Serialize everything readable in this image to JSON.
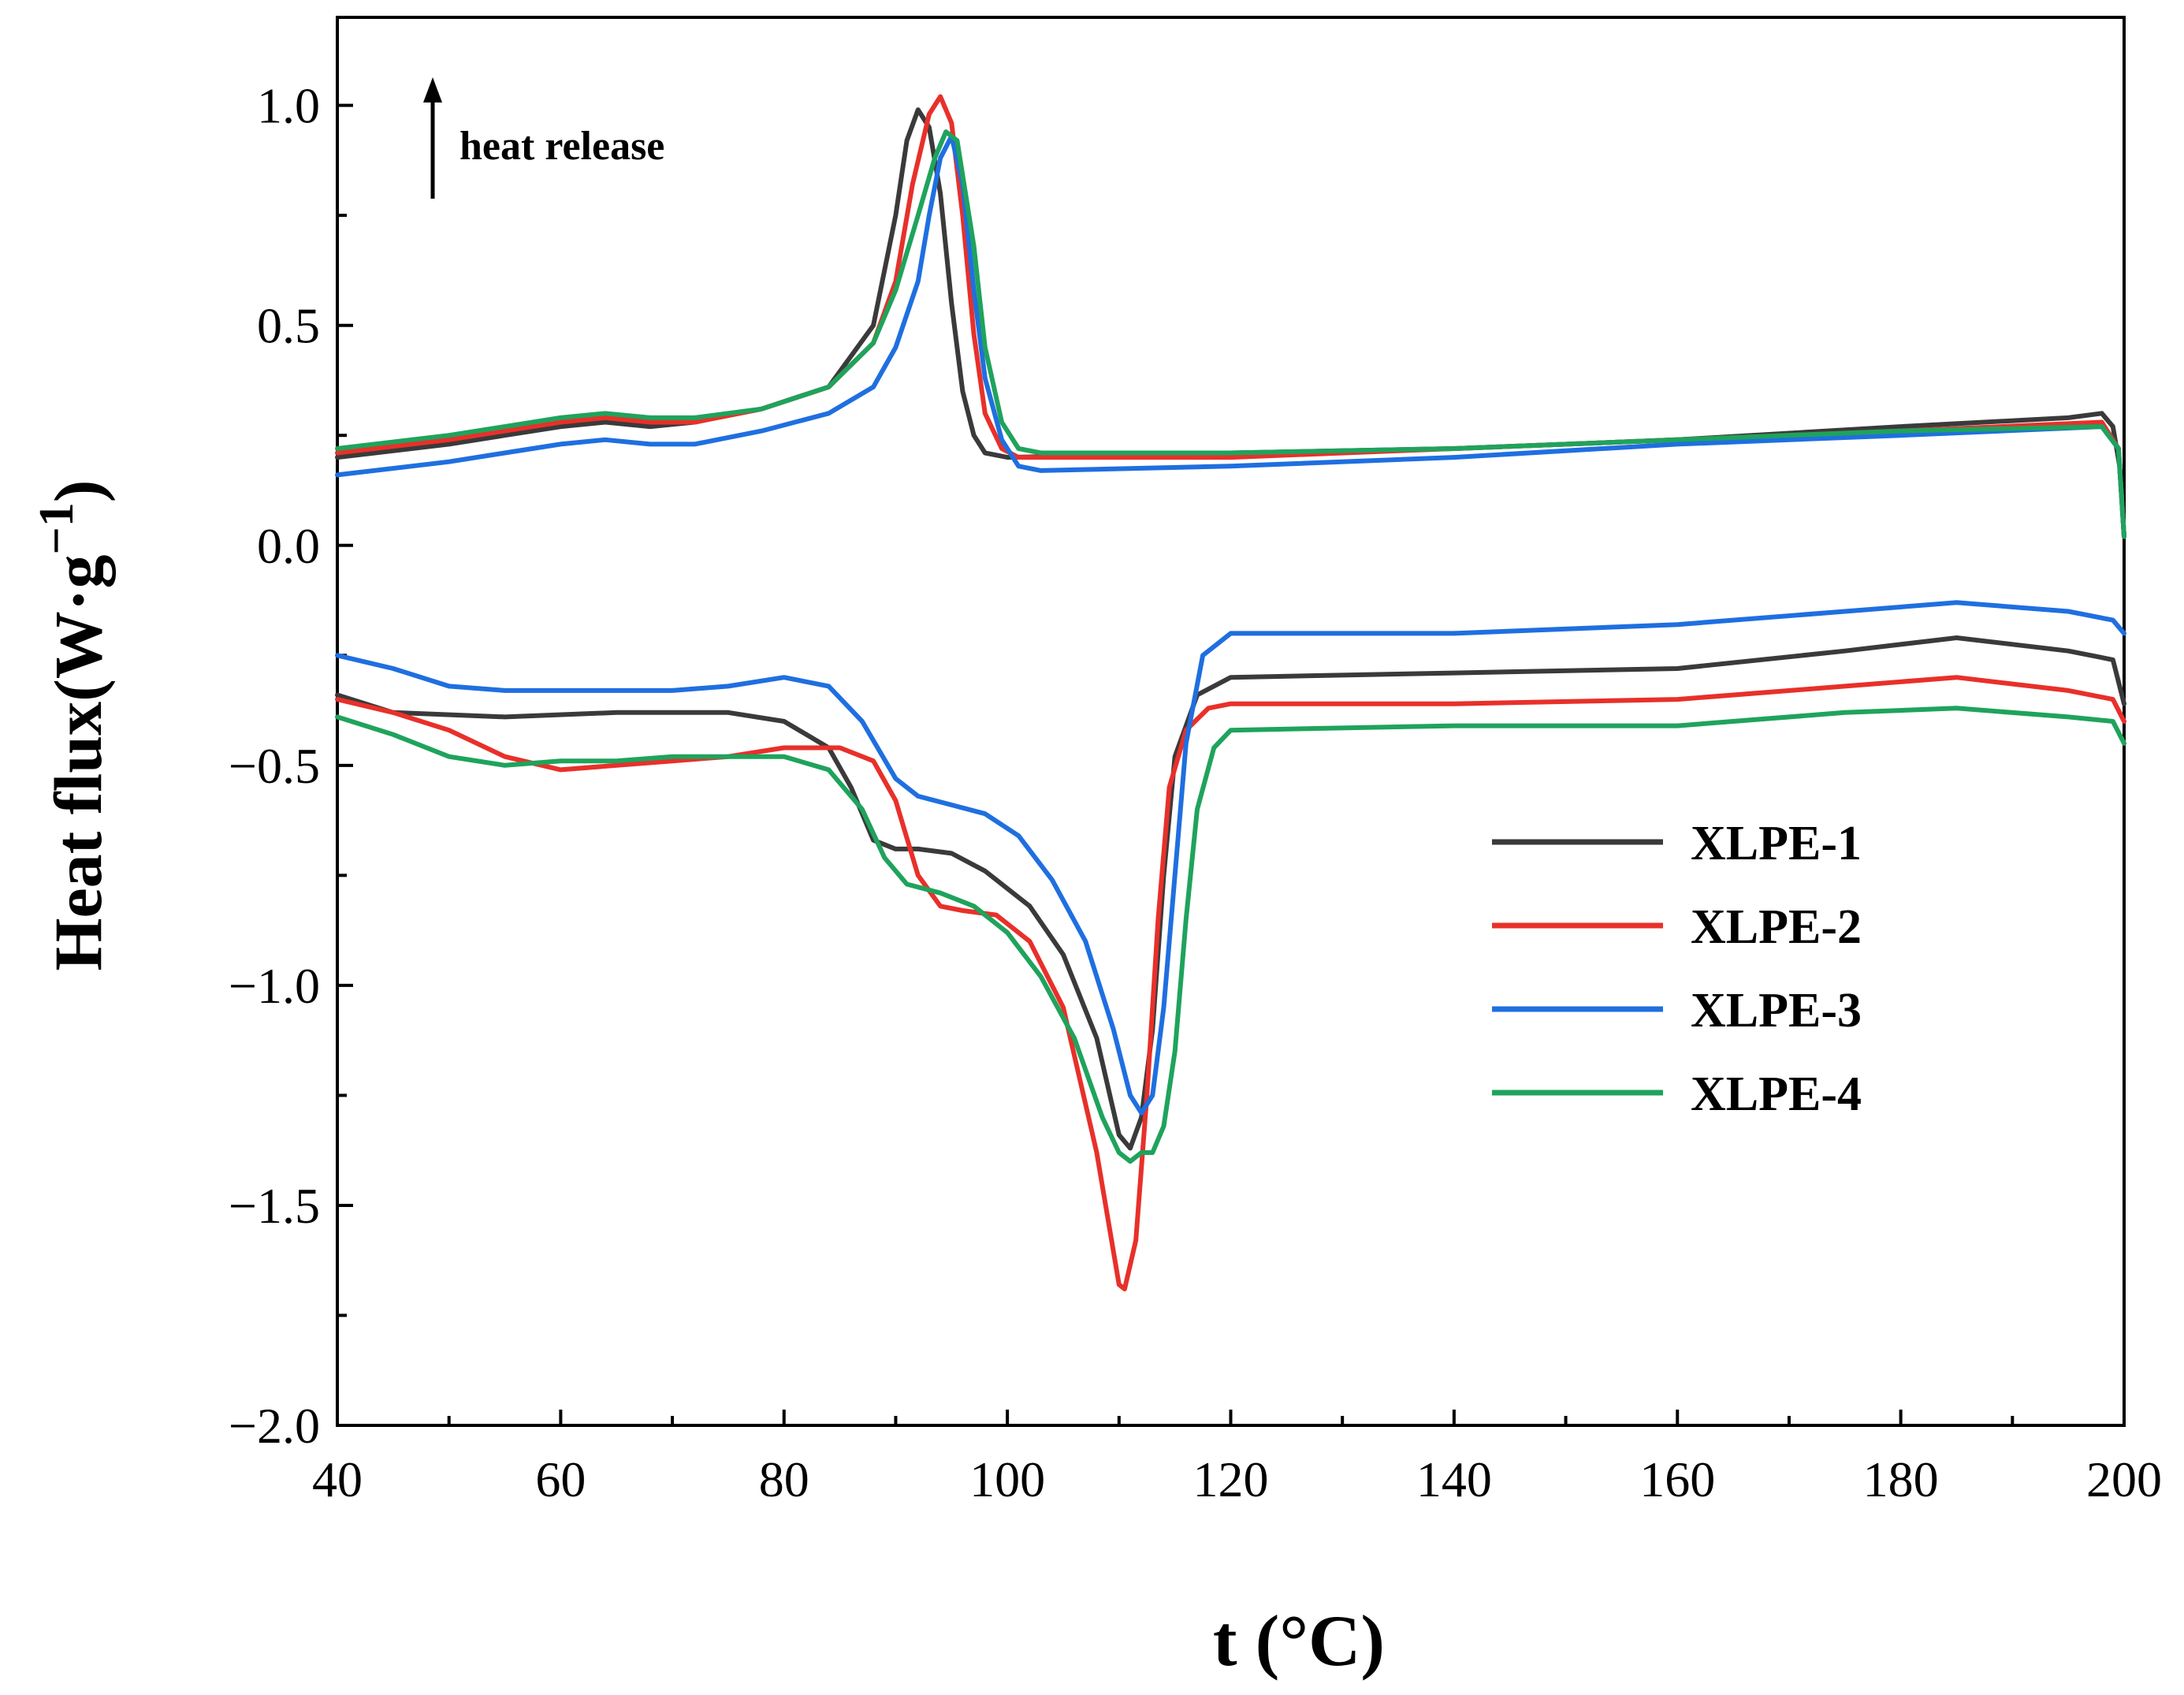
{
  "chart_data": {
    "type": "line",
    "title": "",
    "xlabel_main": "t",
    "xlabel_unit": "(°C)",
    "ylabel_main": "Heat flux(W·g",
    "ylabel_exp": "−1",
    "ylabel_close": ")",
    "xlim": [
      40,
      200
    ],
    "ylim": [
      -2.0,
      1.2
    ],
    "xticks": [
      40,
      60,
      80,
      100,
      120,
      140,
      160,
      180,
      200
    ],
    "xtick_labels": [
      "40",
      "60",
      "80",
      "100",
      "120",
      "140",
      "160",
      "180",
      "200"
    ],
    "yticks": [
      1.0,
      0.5,
      0.0,
      -0.5,
      -1.0,
      -1.5,
      -2.0
    ],
    "ytick_labels": [
      "1.0",
      "0.5",
      "0.0",
      "−0.5",
      "−1.0",
      "−1.5",
      "−2.0"
    ],
    "grid": false,
    "legend_position": "center-right",
    "annotation": {
      "text": "heat release",
      "direction": "up"
    },
    "series": [
      {
        "name": "XLPE-1",
        "color": "#3a3a3a",
        "upper": [
          [
            40,
            0.2
          ],
          [
            50,
            0.23
          ],
          [
            55,
            0.25
          ],
          [
            60,
            0.27
          ],
          [
            64,
            0.28
          ],
          [
            68,
            0.27
          ],
          [
            72,
            0.28
          ],
          [
            78,
            0.31
          ],
          [
            84,
            0.36
          ],
          [
            88,
            0.5
          ],
          [
            90,
            0.75
          ],
          [
            91,
            0.92
          ],
          [
            92,
            0.99
          ],
          [
            93,
            0.95
          ],
          [
            94,
            0.8
          ],
          [
            95,
            0.55
          ],
          [
            96,
            0.35
          ],
          [
            97,
            0.25
          ],
          [
            98,
            0.21
          ],
          [
            100,
            0.2
          ],
          [
            120,
            0.21
          ],
          [
            140,
            0.22
          ],
          [
            160,
            0.24
          ],
          [
            180,
            0.27
          ],
          [
            195,
            0.29
          ],
          [
            198,
            0.3
          ],
          [
            199,
            0.27
          ],
          [
            199.6,
            0.18
          ],
          [
            200,
            0.02
          ]
        ],
        "lower": [
          [
            40,
            -0.34
          ],
          [
            45,
            -0.38
          ],
          [
            55,
            -0.39
          ],
          [
            65,
            -0.38
          ],
          [
            75,
            -0.38
          ],
          [
            80,
            -0.4
          ],
          [
            84,
            -0.46
          ],
          [
            86,
            -0.55
          ],
          [
            88,
            -0.67
          ],
          [
            90,
            -0.69
          ],
          [
            92,
            -0.69
          ],
          [
            95,
            -0.7
          ],
          [
            98,
            -0.74
          ],
          [
            102,
            -0.82
          ],
          [
            105,
            -0.93
          ],
          [
            108,
            -1.12
          ],
          [
            110,
            -1.34
          ],
          [
            111,
            -1.37
          ],
          [
            112,
            -1.3
          ],
          [
            113,
            -1.1
          ],
          [
            114,
            -0.75
          ],
          [
            115,
            -0.48
          ],
          [
            117,
            -0.34
          ],
          [
            120,
            -0.3
          ],
          [
            140,
            -0.29
          ],
          [
            160,
            -0.28
          ],
          [
            175,
            -0.24
          ],
          [
            185,
            -0.21
          ],
          [
            195,
            -0.24
          ],
          [
            199,
            -0.26
          ],
          [
            200,
            -0.36
          ]
        ]
      },
      {
        "name": "XLPE-2",
        "color": "#e8302a",
        "upper": [
          [
            40,
            0.21
          ],
          [
            50,
            0.24
          ],
          [
            60,
            0.28
          ],
          [
            64,
            0.29
          ],
          [
            68,
            0.28
          ],
          [
            72,
            0.28
          ],
          [
            78,
            0.31
          ],
          [
            84,
            0.36
          ],
          [
            88,
            0.46
          ],
          [
            90,
            0.6
          ],
          [
            91.5,
            0.82
          ],
          [
            93,
            0.98
          ],
          [
            94,
            1.02
          ],
          [
            95,
            0.96
          ],
          [
            96,
            0.75
          ],
          [
            97,
            0.48
          ],
          [
            98,
            0.3
          ],
          [
            99.5,
            0.22
          ],
          [
            101,
            0.2
          ],
          [
            120,
            0.2
          ],
          [
            140,
            0.22
          ],
          [
            160,
            0.24
          ],
          [
            180,
            0.26
          ],
          [
            198,
            0.28
          ],
          [
            199.5,
            0.22
          ],
          [
            200,
            0.02
          ]
        ],
        "lower": [
          [
            40,
            -0.35
          ],
          [
            45,
            -0.38
          ],
          [
            50,
            -0.42
          ],
          [
            55,
            -0.48
          ],
          [
            60,
            -0.51
          ],
          [
            65,
            -0.5
          ],
          [
            70,
            -0.49
          ],
          [
            75,
            -0.48
          ],
          [
            80,
            -0.46
          ],
          [
            85,
            -0.46
          ],
          [
            88,
            -0.49
          ],
          [
            90,
            -0.58
          ],
          [
            92,
            -0.75
          ],
          [
            94,
            -0.82
          ],
          [
            96,
            -0.83
          ],
          [
            99,
            -0.84
          ],
          [
            102,
            -0.9
          ],
          [
            105,
            -1.05
          ],
          [
            108,
            -1.38
          ],
          [
            110,
            -1.68
          ],
          [
            110.5,
            -1.69
          ],
          [
            111.5,
            -1.58
          ],
          [
            112.5,
            -1.25
          ],
          [
            113.5,
            -0.85
          ],
          [
            114.5,
            -0.55
          ],
          [
            116,
            -0.42
          ],
          [
            118,
            -0.37
          ],
          [
            120,
            -0.36
          ],
          [
            140,
            -0.36
          ],
          [
            160,
            -0.35
          ],
          [
            175,
            -0.32
          ],
          [
            185,
            -0.3
          ],
          [
            195,
            -0.33
          ],
          [
            199,
            -0.35
          ],
          [
            200,
            -0.4
          ]
        ]
      },
      {
        "name": "XLPE-3",
        "color": "#1f6fe0",
        "upper": [
          [
            40,
            0.16
          ],
          [
            50,
            0.19
          ],
          [
            55,
            0.21
          ],
          [
            60,
            0.23
          ],
          [
            64,
            0.24
          ],
          [
            68,
            0.23
          ],
          [
            72,
            0.23
          ],
          [
            78,
            0.26
          ],
          [
            84,
            0.3
          ],
          [
            88,
            0.36
          ],
          [
            90,
            0.45
          ],
          [
            92,
            0.6
          ],
          [
            93,
            0.75
          ],
          [
            94,
            0.88
          ],
          [
            95,
            0.93
          ],
          [
            96,
            0.82
          ],
          [
            97,
            0.58
          ],
          [
            98,
            0.38
          ],
          [
            99.5,
            0.24
          ],
          [
            101,
            0.18
          ],
          [
            103,
            0.17
          ],
          [
            120,
            0.18
          ],
          [
            140,
            0.2
          ],
          [
            160,
            0.23
          ],
          [
            180,
            0.25
          ],
          [
            198,
            0.27
          ],
          [
            199.5,
            0.22
          ],
          [
            200,
            0.02
          ]
        ],
        "lower": [
          [
            40,
            -0.25
          ],
          [
            45,
            -0.28
          ],
          [
            50,
            -0.32
          ],
          [
            55,
            -0.33
          ],
          [
            60,
            -0.33
          ],
          [
            65,
            -0.33
          ],
          [
            70,
            -0.33
          ],
          [
            75,
            -0.32
          ],
          [
            80,
            -0.3
          ],
          [
            84,
            -0.32
          ],
          [
            87,
            -0.4
          ],
          [
            90,
            -0.53
          ],
          [
            92,
            -0.57
          ],
          [
            95,
            -0.59
          ],
          [
            98,
            -0.61
          ],
          [
            101,
            -0.66
          ],
          [
            104,
            -0.76
          ],
          [
            107,
            -0.9
          ],
          [
            109.5,
            -1.1
          ],
          [
            111,
            -1.25
          ],
          [
            112,
            -1.29
          ],
          [
            113,
            -1.25
          ],
          [
            114,
            -1.05
          ],
          [
            115,
            -0.75
          ],
          [
            116,
            -0.45
          ],
          [
            117.5,
            -0.25
          ],
          [
            120,
            -0.2
          ],
          [
            140,
            -0.2
          ],
          [
            160,
            -0.18
          ],
          [
            175,
            -0.15
          ],
          [
            185,
            -0.13
          ],
          [
            195,
            -0.15
          ],
          [
            199,
            -0.17
          ],
          [
            200,
            -0.2
          ]
        ]
      },
      {
        "name": "XLPE-4",
        "color": "#1fa35c",
        "upper": [
          [
            40,
            0.22
          ],
          [
            50,
            0.25
          ],
          [
            55,
            0.27
          ],
          [
            60,
            0.29
          ],
          [
            64,
            0.3
          ],
          [
            68,
            0.29
          ],
          [
            72,
            0.29
          ],
          [
            78,
            0.31
          ],
          [
            84,
            0.36
          ],
          [
            88,
            0.46
          ],
          [
            90,
            0.58
          ],
          [
            92,
            0.75
          ],
          [
            93.5,
            0.88
          ],
          [
            94.5,
            0.94
          ],
          [
            95.5,
            0.92
          ],
          [
            97,
            0.68
          ],
          [
            98,
            0.45
          ],
          [
            99.5,
            0.28
          ],
          [
            101,
            0.22
          ],
          [
            103,
            0.21
          ],
          [
            120,
            0.21
          ],
          [
            140,
            0.22
          ],
          [
            160,
            0.24
          ],
          [
            180,
            0.26
          ],
          [
            198,
            0.27
          ],
          [
            199.5,
            0.22
          ],
          [
            200,
            0.02
          ]
        ],
        "lower": [
          [
            40,
            -0.39
          ],
          [
            45,
            -0.43
          ],
          [
            50,
            -0.48
          ],
          [
            55,
            -0.5
          ],
          [
            60,
            -0.49
          ],
          [
            65,
            -0.49
          ],
          [
            70,
            -0.48
          ],
          [
            75,
            -0.48
          ],
          [
            80,
            -0.48
          ],
          [
            84,
            -0.51
          ],
          [
            87,
            -0.6
          ],
          [
            89,
            -0.71
          ],
          [
            91,
            -0.77
          ],
          [
            94,
            -0.79
          ],
          [
            97,
            -0.82
          ],
          [
            100,
            -0.88
          ],
          [
            103,
            -0.98
          ],
          [
            106,
            -1.12
          ],
          [
            108.5,
            -1.3
          ],
          [
            110,
            -1.38
          ],
          [
            111,
            -1.4
          ],
          [
            112,
            -1.38
          ],
          [
            113,
            -1.38
          ],
          [
            114,
            -1.32
          ],
          [
            115,
            -1.15
          ],
          [
            116,
            -0.85
          ],
          [
            117,
            -0.6
          ],
          [
            118.5,
            -0.46
          ],
          [
            120,
            -0.42
          ],
          [
            140,
            -0.41
          ],
          [
            160,
            -0.41
          ],
          [
            175,
            -0.38
          ],
          [
            185,
            -0.37
          ],
          [
            195,
            -0.39
          ],
          [
            199,
            -0.4
          ],
          [
            200,
            -0.45
          ]
        ]
      }
    ]
  }
}
